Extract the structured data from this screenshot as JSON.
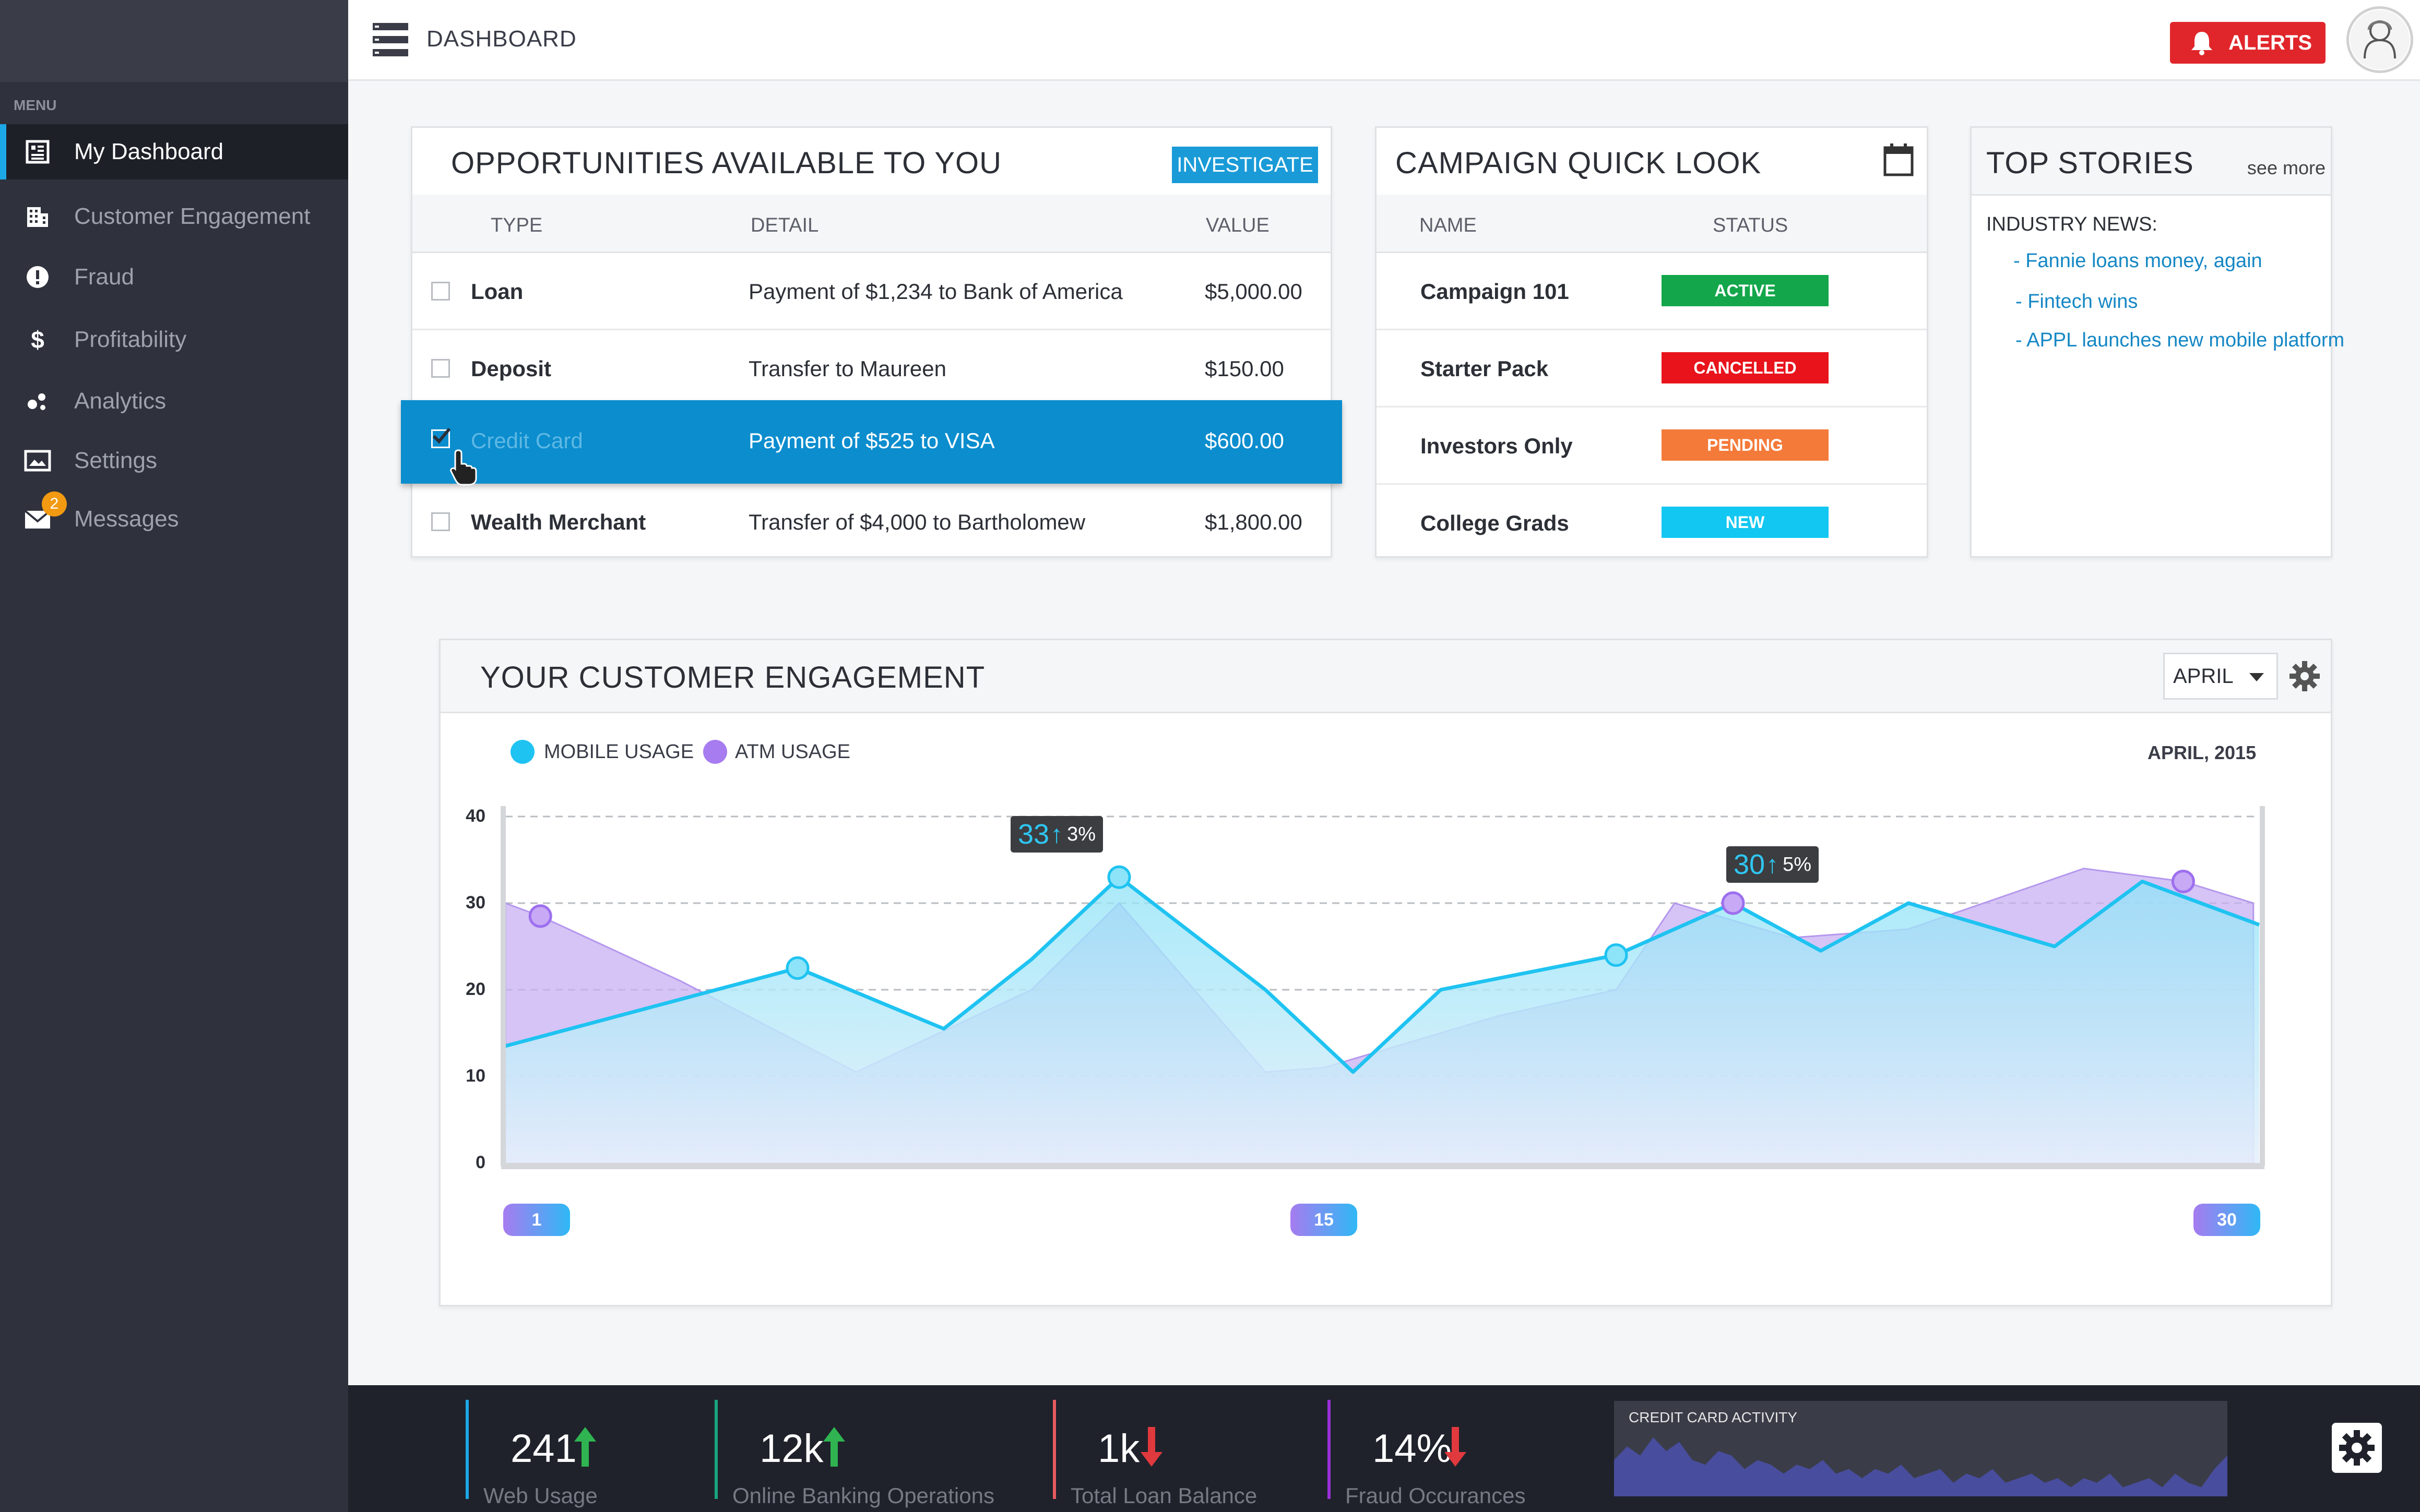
{
  "sidebar": {
    "menu_label": "MENU",
    "items": [
      {
        "label": "My Dashboard",
        "icon": "dashboard-icon",
        "active": true
      },
      {
        "label": "Customer Engagement",
        "icon": "building-icon"
      },
      {
        "label": "Fraud",
        "icon": "exclamation-icon"
      },
      {
        "label": "Profitability",
        "icon": "dollar-icon"
      },
      {
        "label": "Analytics",
        "icon": "analytics-icon"
      },
      {
        "label": "Settings",
        "icon": "settings-monitor-icon"
      },
      {
        "label": "Messages",
        "icon": "envelope-icon",
        "badge": "2"
      }
    ]
  },
  "topbar": {
    "title": "DASHBOARD",
    "alerts_label": "ALERTS"
  },
  "opportunities": {
    "title": "OPPORTUNITIES AVAILABLE TO YOU",
    "action_label": "INVESTIGATE",
    "columns": [
      "TYPE",
      "DETAIL",
      "VALUE"
    ],
    "rows": [
      {
        "type": "Loan",
        "detail": "Payment of $1,234 to Bank of America",
        "value": "$5,000.00",
        "checked": false
      },
      {
        "type": "Deposit",
        "detail": "Transfer to Maureen",
        "value": "$150.00",
        "checked": false
      },
      {
        "type": "Credit Card",
        "detail": "Payment of $525 to VISA",
        "value": "$600.00",
        "checked": true,
        "selected": true
      },
      {
        "type": "Wealth Merchant",
        "detail": "Transfer of $4,000 to Bartholomew",
        "value": "$1,800.00",
        "checked": false
      }
    ]
  },
  "campaign": {
    "title": "CAMPAIGN QUICK LOOK",
    "columns": [
      "NAME",
      "STATUS"
    ],
    "rows": [
      {
        "name": "Campaign 101",
        "status": "ACTIVE",
        "color": "#13a64a"
      },
      {
        "name": "Starter Pack",
        "status": "CANCELLED",
        "color": "#e8131b"
      },
      {
        "name": "Investors Only",
        "status": "PENDING",
        "color": "#f47a3a"
      },
      {
        "name": "College Grads",
        "status": "NEW",
        "color": "#12c7f1"
      }
    ]
  },
  "stories": {
    "title": "TOP STORIES",
    "see_more": "see more",
    "section": "INDUSTRY NEWS:",
    "items": [
      "- Fannie loans money, again",
      "- Fintech wins",
      "- APPL launches new mobile platform"
    ]
  },
  "engagement": {
    "title": "YOUR CUSTOMER ENGAGEMENT",
    "month": "APRIL",
    "date_label": "APRIL, 2015",
    "tooltips": [
      {
        "value": "33",
        "pct": "3%"
      },
      {
        "value": "30",
        "pct": "5%"
      }
    ]
  },
  "chart_data": {
    "type": "area",
    "ylim": [
      0,
      40
    ],
    "yticks": [
      0,
      10,
      20,
      30,
      40
    ],
    "xlim": [
      1,
      30
    ],
    "xticks": [
      "1",
      "15",
      "30"
    ],
    "grid": true,
    "legend": "top-left",
    "series": [
      {
        "name": "MOBILE USAGE",
        "color": "#1fc3f1",
        "x": [
          1,
          6,
          8.5,
          10,
          11.5,
          14,
          15.5,
          17,
          20,
          22,
          23.5,
          25,
          27.5,
          29,
          31
        ],
        "y": [
          13.5,
          22.5,
          15.5,
          23.5,
          33,
          20,
          10.5,
          20,
          24,
          30,
          24.5,
          30,
          25,
          32.5,
          27.5
        ]
      },
      {
        "name": "ATM USAGE",
        "color": "#a67cf0",
        "x": [
          1,
          1.6,
          4,
          7,
          10,
          11.5,
          14,
          15,
          18,
          20,
          21,
          23,
          25,
          28,
          29.7,
          30.9
        ],
        "y": [
          30,
          28.5,
          21,
          10.5,
          20,
          30,
          10.5,
          11,
          17,
          20,
          30,
          26,
          27,
          34,
          32.5,
          30
        ]
      }
    ],
    "markers": {
      "MOBILE USAGE": [
        [
          6,
          22.5
        ],
        [
          11.5,
          33
        ],
        [
          20,
          24
        ]
      ],
      "ATM USAGE": [
        [
          1.6,
          28.5
        ],
        [
          22,
          30
        ],
        [
          29.7,
          32.5
        ]
      ]
    }
  },
  "bottom_stats": [
    {
      "value": "241",
      "label": "Web Usage",
      "trend": "up",
      "color": "#1ca8e6"
    },
    {
      "value": "12k",
      "label": "Online Banking Operations",
      "trend": "up",
      "color": "#18a57e"
    },
    {
      "value": "1k",
      "label": "Total Loan Balance",
      "trend": "down",
      "color": "#e85a5f"
    },
    {
      "value": "14%",
      "label": "Fraud Occurances",
      "trend": "down",
      "color": "#9a2fd6"
    }
  ],
  "credit_card_activity": {
    "title": "CREDIT CARD ACTIVITY",
    "values": [
      8,
      11,
      9,
      13,
      10,
      12,
      8,
      7,
      10,
      9,
      6,
      8,
      7,
      5,
      7,
      6,
      8,
      5,
      6,
      4,
      6,
      5,
      7,
      4,
      5,
      6,
      3,
      5,
      4,
      6,
      3,
      4,
      5,
      3,
      4,
      2,
      4,
      3,
      5,
      2,
      3,
      4,
      2,
      5,
      3,
      2,
      6,
      9
    ]
  },
  "colors": {
    "sidebar_bg": "#2f323d",
    "accent": "#1a9bd7",
    "alert": "#e0262b",
    "mobile_usage": "#1fc3f1",
    "atm_usage": "#a67cf0"
  }
}
